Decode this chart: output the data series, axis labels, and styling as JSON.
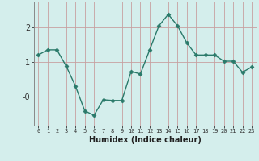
{
  "x": [
    0,
    1,
    2,
    3,
    4,
    5,
    6,
    7,
    8,
    9,
    10,
    11,
    12,
    13,
    14,
    15,
    16,
    17,
    18,
    19,
    20,
    21,
    22,
    23
  ],
  "y": [
    1.2,
    1.35,
    1.35,
    0.88,
    0.3,
    -0.42,
    -0.55,
    -0.1,
    -0.12,
    -0.12,
    0.72,
    0.65,
    1.35,
    2.05,
    2.38,
    2.05,
    1.55,
    1.2,
    1.2,
    1.2,
    1.02,
    1.02,
    0.7,
    0.85
  ],
  "xlabel": "Humidex (Indice chaleur)",
  "bg_color": "#d4eeec",
  "line_color": "#2a7a6a",
  "marker_color": "#2a7a6a",
  "grid_color_v": "#c8a0a0",
  "grid_color_h": "#c8a0a0",
  "ylim": [
    -0.85,
    2.75
  ],
  "xlim": [
    -0.5,
    23.5
  ]
}
